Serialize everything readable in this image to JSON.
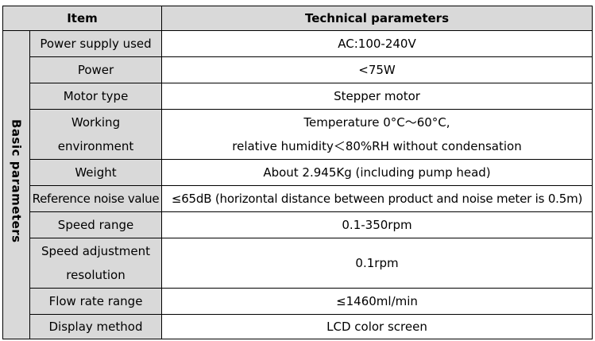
{
  "table": {
    "header": {
      "item": "Item",
      "parameters": "Technical parameters"
    },
    "group_label": "Basic parameters",
    "rows": [
      {
        "label": "Power supply used",
        "value": "AC:100-240V"
      },
      {
        "label": "Power",
        "value": "<75W"
      },
      {
        "label": "Motor type",
        "value": "Stepper motor"
      },
      {
        "label_lines": [
          "Working",
          "environment"
        ],
        "value_lines": [
          "Temperature 0°C～60°C,",
          "relative humidity＜80%RH without condensation"
        ]
      },
      {
        "label": "Weight",
        "value": "About 2.945Kg (including pump head)"
      },
      {
        "label": "Reference noise value",
        "value": "≤65dB (horizontal distance between product and noise meter is 0.5m)"
      },
      {
        "label": "Speed range",
        "value": "0.1-350rpm"
      },
      {
        "label_lines": [
          "Speed adjustment",
          "resolution"
        ],
        "value": "0.1rpm"
      },
      {
        "label": "Flow rate range",
        "value": "≤1460ml/min"
      },
      {
        "label": "Display method",
        "value": "LCD color screen"
      }
    ]
  }
}
